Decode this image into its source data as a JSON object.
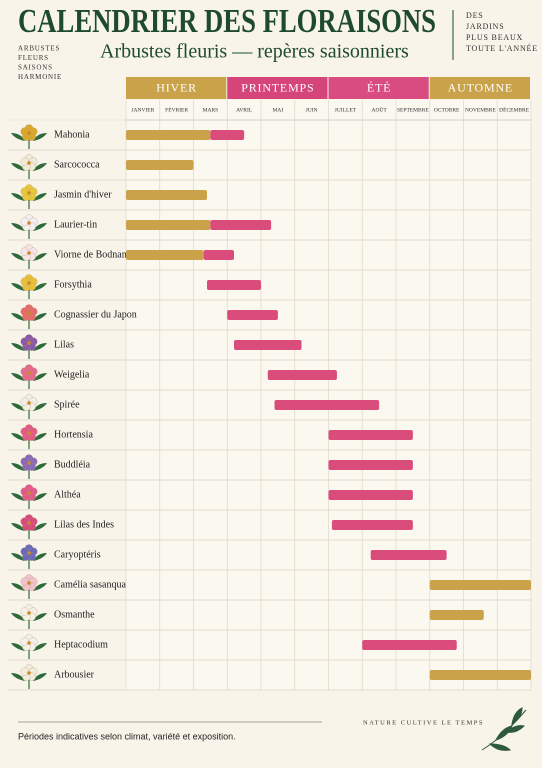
{
  "chart_data": {
    "type": "gantt",
    "title": "CALENDRIER DES FLORAISONS",
    "subtitle": "Arbustes fleuris — repères saisonniers",
    "tagline_left": [
      "ARBUSTES",
      "FLEURS",
      "SAISONS",
      "HARMONIE"
    ],
    "tagline_right": [
      "DES",
      "JARDINS",
      "PLUS BEAUX",
      "TOUTE L'ANNÉE"
    ],
    "seasons": [
      {
        "name": "HIVER",
        "color": "#c9a24a"
      },
      {
        "name": "PRINTEMPS",
        "color": "#d6457a"
      },
      {
        "name": "ÉTÉ",
        "color": "#d94c82"
      },
      {
        "name": "AUTOMNE",
        "color": "#c9a24a"
      }
    ],
    "months": [
      "JANVIER",
      "FÉVRIER",
      "MARS",
      "AVRIL",
      "MAI",
      "JUIN",
      "JUILLET",
      "AOÛT",
      "SEPTEMBRE",
      "OCTOBRE",
      "NOVEMBRE",
      "DÉCEMBRE"
    ],
    "xlim": [
      0,
      12
    ],
    "categories": [
      "Mahonia",
      "Sarcococca",
      "Jasmin d'hiver",
      "Laurier-tin",
      "Viorne de Bodnant",
      "Forsythia",
      "Cognassier du Japon",
      "Lilas",
      "Weigelia",
      "Spirée",
      "Hortensia",
      "Buddléia",
      "Althéa",
      "Lilas des Indes",
      "Caryoptéris",
      "Camélia sasanqua",
      "Osmanthe",
      "Heptacodium",
      "Arbousier"
    ],
    "bars": [
      [
        {
          "start": 0,
          "end": 2.5,
          "color": "#c9a24a"
        },
        {
          "start": 2.5,
          "end": 3.5,
          "color": "#d94c7c"
        }
      ],
      [
        {
          "start": 0,
          "end": 2,
          "color": "#c9a24a"
        }
      ],
      [
        {
          "start": 0,
          "end": 2.4,
          "color": "#c9a24a"
        }
      ],
      [
        {
          "start": 0,
          "end": 2.5,
          "color": "#c9a24a"
        },
        {
          "start": 2.5,
          "end": 4.3,
          "color": "#d94c7c"
        }
      ],
      [
        {
          "start": 0,
          "end": 2.3,
          "color": "#c9a24a"
        },
        {
          "start": 2.3,
          "end": 3.2,
          "color": "#d94c7c"
        }
      ],
      [
        {
          "start": 2.4,
          "end": 4,
          "color": "#d94c7c"
        }
      ],
      [
        {
          "start": 3,
          "end": 4.5,
          "color": "#d94c7c"
        }
      ],
      [
        {
          "start": 3.2,
          "end": 5.2,
          "color": "#d94c7c"
        }
      ],
      [
        {
          "start": 4.2,
          "end": 6.25,
          "color": "#d94c7c"
        }
      ],
      [
        {
          "start": 4.4,
          "end": 7.5,
          "color": "#d94c7c"
        }
      ],
      [
        {
          "start": 6,
          "end": 8.5,
          "color": "#d94c7c"
        }
      ],
      [
        {
          "start": 6,
          "end": 8.5,
          "color": "#d94c7c"
        }
      ],
      [
        {
          "start": 6,
          "end": 8.5,
          "color": "#d94c7c"
        }
      ],
      [
        {
          "start": 6.1,
          "end": 8.5,
          "color": "#d94c7c"
        }
      ],
      [
        {
          "start": 7.25,
          "end": 9.5,
          "color": "#d94c7c"
        }
      ],
      [
        {
          "start": 9,
          "end": 12,
          "color": "#c9a24a"
        }
      ],
      [
        {
          "start": 9,
          "end": 10.6,
          "color": "#c9a24a"
        }
      ],
      [
        {
          "start": 7,
          "end": 9.8,
          "color": "#d94c7c"
        }
      ],
      [
        {
          "start": 9,
          "end": 12,
          "color": "#c9a24a"
        }
      ]
    ],
    "footnote": "Périodes indicatives selon climat, variété et exposition.",
    "motto": "NATURE CULTIVE LE TEMPS"
  }
}
